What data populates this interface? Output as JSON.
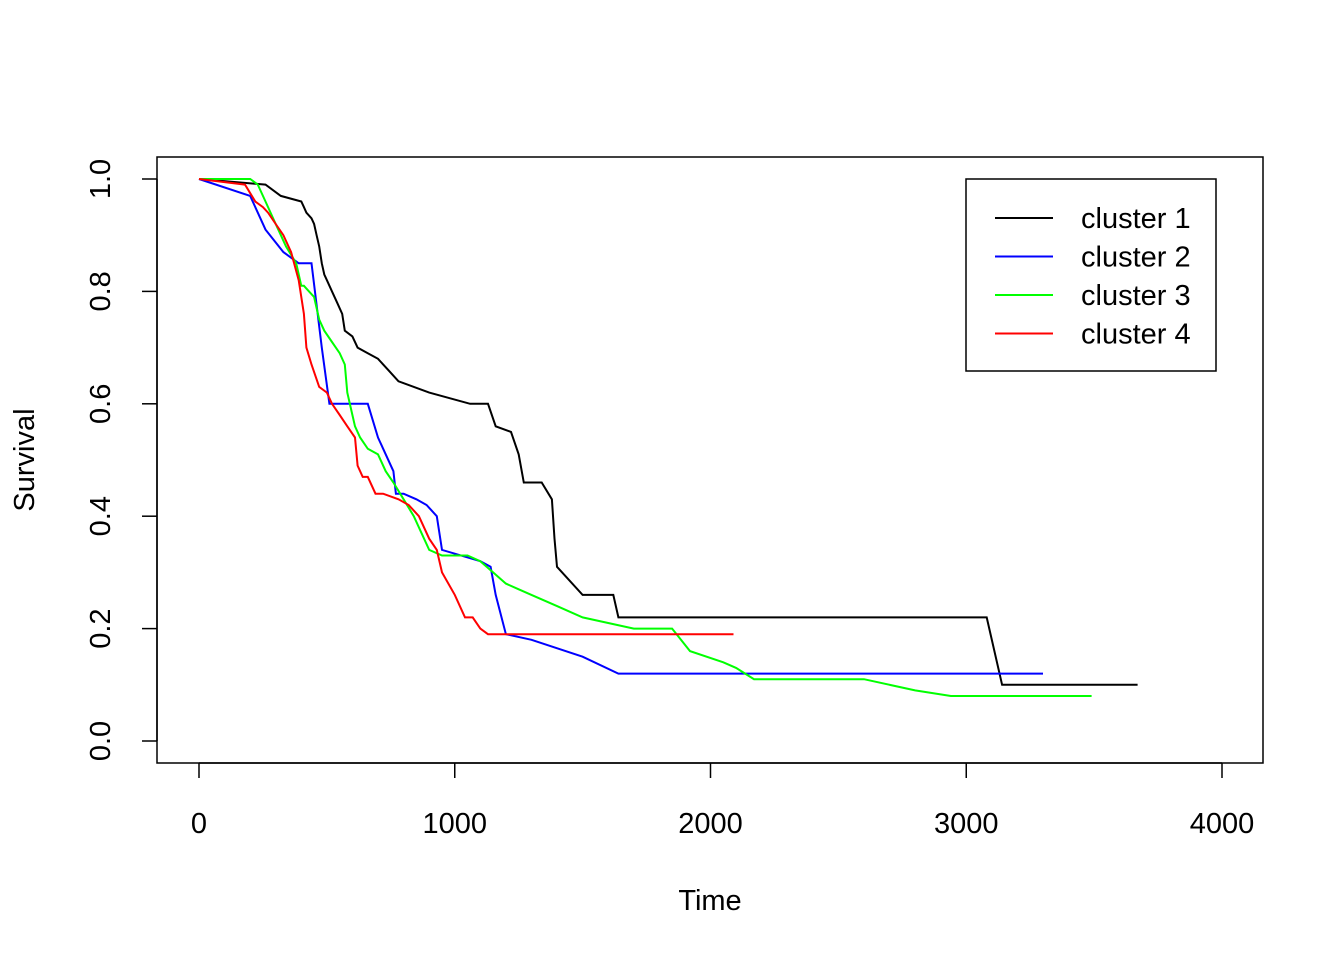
{
  "chart_data": {
    "type": "line",
    "title": "",
    "xlabel": "Time",
    "ylabel": "Survival",
    "xlim": [
      0,
      4000
    ],
    "ylim": [
      0,
      1
    ],
    "xticks": [
      0,
      1000,
      2000,
      3000,
      4000
    ],
    "xtick_labels": [
      "0",
      "1000",
      "2000",
      "3000",
      "4000"
    ],
    "yticks": [
      0,
      0.2,
      0.4,
      0.6,
      0.8,
      1
    ],
    "ytick_labels": [
      "0.0",
      "0.2",
      "0.4",
      "0.6",
      "0.8",
      "1.0"
    ],
    "grid": false,
    "legend": {
      "position": "top-right",
      "entries": [
        "cluster 1",
        "cluster 2",
        "cluster 3",
        "cluster 4"
      ]
    },
    "series": [
      {
        "name": "cluster 1",
        "color": "#000000",
        "x": [
          0,
          260,
          320,
          400,
          410,
          420,
          440,
          450,
          460,
          470,
          480,
          490,
          500,
          520,
          540,
          560,
          570,
          600,
          620,
          660,
          700,
          740,
          780,
          900,
          1060,
          1130,
          1160,
          1220,
          1250,
          1270,
          1340,
          1380,
          1390,
          1400,
          1500,
          1620,
          1640,
          2500,
          3080,
          3140,
          3670
        ],
        "y": [
          1,
          0.99,
          0.97,
          0.96,
          0.95,
          0.94,
          0.93,
          0.92,
          0.9,
          0.88,
          0.85,
          0.83,
          0.82,
          0.8,
          0.78,
          0.76,
          0.73,
          0.72,
          0.7,
          0.69,
          0.68,
          0.66,
          0.64,
          0.62,
          0.6,
          0.6,
          0.56,
          0.55,
          0.51,
          0.46,
          0.46,
          0.43,
          0.36,
          0.31,
          0.26,
          0.26,
          0.22,
          0.22,
          0.22,
          0.1,
          0.1
        ]
      },
      {
        "name": "cluster 2",
        "color": "#0000ff",
        "x": [
          0,
          200,
          260,
          330,
          390,
          440,
          480,
          510,
          600,
          660,
          700,
          760,
          770,
          800,
          850,
          890,
          930,
          950,
          1100,
          1140,
          1160,
          1200,
          1300,
          1500,
          1640,
          2000,
          2500,
          3000,
          3300
        ],
        "y": [
          1,
          0.97,
          0.91,
          0.87,
          0.85,
          0.85,
          0.7,
          0.6,
          0.6,
          0.6,
          0.54,
          0.48,
          0.44,
          0.44,
          0.43,
          0.42,
          0.4,
          0.34,
          0.32,
          0.31,
          0.26,
          0.19,
          0.18,
          0.15,
          0.12,
          0.12,
          0.12,
          0.12,
          0.12
        ]
      },
      {
        "name": "cluster 3",
        "color": "#00ff00",
        "x": [
          0,
          200,
          230,
          260,
          300,
          340,
          380,
          400,
          410,
          430,
          450,
          470,
          490,
          520,
          550,
          570,
          580,
          600,
          610,
          630,
          660,
          700,
          730,
          760,
          800,
          840,
          870,
          900,
          950,
          1000,
          1050,
          1100,
          1150,
          1200,
          1250,
          1300,
          1400,
          1500,
          1600,
          1700,
          1800,
          1850,
          1920,
          2050,
          2100,
          2170,
          2300,
          2400,
          2500,
          2600,
          2800,
          2940,
          3100,
          3300,
          3490
        ],
        "y": [
          1,
          1,
          0.99,
          0.96,
          0.92,
          0.88,
          0.85,
          0.81,
          0.81,
          0.8,
          0.79,
          0.75,
          0.73,
          0.71,
          0.69,
          0.67,
          0.62,
          0.58,
          0.56,
          0.54,
          0.52,
          0.51,
          0.48,
          0.46,
          0.43,
          0.4,
          0.37,
          0.34,
          0.33,
          0.33,
          0.33,
          0.32,
          0.3,
          0.28,
          0.27,
          0.26,
          0.24,
          0.22,
          0.21,
          0.2,
          0.2,
          0.2,
          0.16,
          0.14,
          0.13,
          0.11,
          0.11,
          0.11,
          0.11,
          0.11,
          0.09,
          0.08,
          0.08,
          0.08,
          0.08
        ]
      },
      {
        "name": "cluster 4",
        "color": "#ff0000",
        "x": [
          0,
          180,
          220,
          250,
          270,
          300,
          330,
          360,
          390,
          410,
          420,
          440,
          470,
          500,
          520,
          550,
          580,
          610,
          620,
          640,
          660,
          690,
          720,
          780,
          820,
          860,
          900,
          930,
          950,
          1000,
          1040,
          1070,
          1100,
          1130,
          1500,
          2090
        ],
        "y": [
          1,
          0.99,
          0.96,
          0.95,
          0.94,
          0.92,
          0.9,
          0.87,
          0.82,
          0.76,
          0.7,
          0.67,
          0.63,
          0.62,
          0.6,
          0.58,
          0.56,
          0.54,
          0.49,
          0.47,
          0.47,
          0.44,
          0.44,
          0.43,
          0.42,
          0.4,
          0.36,
          0.34,
          0.3,
          0.26,
          0.22,
          0.22,
          0.2,
          0.19,
          0.19,
          0.19
        ]
      }
    ]
  }
}
